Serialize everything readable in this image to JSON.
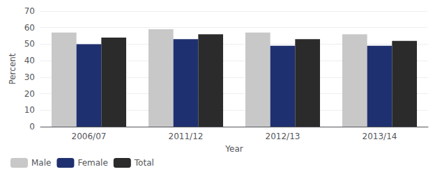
{
  "chart_data": {
    "type": "bar",
    "categories": [
      "2006/07",
      "2011/12",
      "2012/13",
      "2013/14"
    ],
    "series": [
      {
        "name": "Male",
        "color": "#c8c8c8",
        "values": [
          57,
          59,
          57,
          56
        ]
      },
      {
        "name": "Female",
        "color": "#1f3070",
        "values": [
          50,
          53,
          49,
          49
        ]
      },
      {
        "name": "Total",
        "color": "#2b2b2b",
        "values": [
          54,
          56,
          53,
          52
        ]
      }
    ],
    "xlabel": "Year",
    "ylabel": "Percent",
    "ylim": [
      0,
      70
    ],
    "yticks": [
      0,
      10,
      20,
      30,
      40,
      50,
      60,
      70
    ],
    "grid": true,
    "legend": "lower left"
  }
}
